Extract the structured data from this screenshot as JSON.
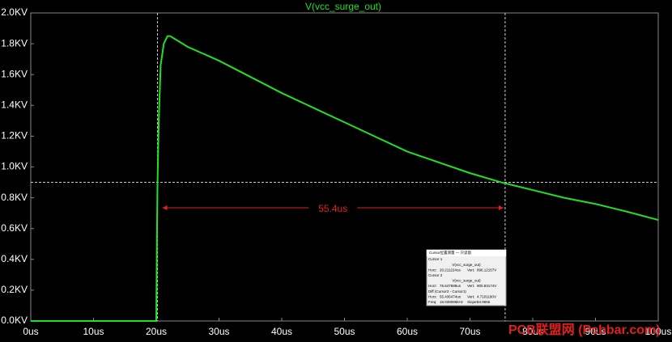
{
  "chart_data": {
    "type": "line",
    "title": "V(vcc_surge_out)",
    "series": [
      {
        "name": "V(vcc_surge_out)",
        "color": "#22e022",
        "x": [
          0,
          10,
          20,
          20.1,
          20.2,
          20.4,
          20.7,
          21.2,
          21.8,
          22.2,
          23,
          25,
          30,
          35,
          40,
          45,
          50,
          55,
          60,
          65,
          70,
          75,
          80,
          85,
          90,
          95,
          100
        ],
        "values": [
          0,
          0,
          0,
          0.5,
          0.9,
          1.3,
          1.66,
          1.8,
          1.85,
          1.85,
          1.83,
          1.78,
          1.69,
          1.585,
          1.48,
          1.385,
          1.29,
          1.195,
          1.1,
          1.03,
          0.96,
          0.9,
          0.85,
          0.8,
          0.76,
          0.71,
          0.656
        ]
      }
    ],
    "xlim": [
      0,
      100
    ],
    "ylim": [
      0,
      2.0
    ],
    "xticks": [
      {
        "value": 0,
        "label": "0us"
      },
      {
        "value": 10,
        "label": "10us"
      },
      {
        "value": 20,
        "label": "20us"
      },
      {
        "value": 30,
        "label": "30us"
      },
      {
        "value": 40,
        "label": "40us"
      },
      {
        "value": 50,
        "label": "50us"
      },
      {
        "value": 60,
        "label": "60us"
      },
      {
        "value": 70,
        "label": "70us"
      },
      {
        "value": 80,
        "label": "80us"
      },
      {
        "value": 90,
        "label": "90us"
      },
      {
        "value": 100,
        "label": "100us"
      }
    ],
    "yticks": [
      {
        "value": 0,
        "label": "0.0KV"
      },
      {
        "value": 0.2,
        "label": "0.2KV"
      },
      {
        "value": 0.4,
        "label": "0.4KV"
      },
      {
        "value": 0.6,
        "label": "0.6KV"
      },
      {
        "value": 0.8,
        "label": "0.8KV"
      },
      {
        "value": 1.0,
        "label": "1.0KV"
      },
      {
        "value": 1.2,
        "label": "1.2KV"
      },
      {
        "value": 1.4,
        "label": "1.4KV"
      },
      {
        "value": 1.6,
        "label": "1.6KV"
      },
      {
        "value": 1.8,
        "label": "1.8KV"
      },
      {
        "value": 2.0,
        "label": "2.0KV"
      }
    ],
    "cursors": {
      "x": [
        20.2,
        75.6
      ],
      "y": 0.9
    },
    "annotation": "55.4us",
    "watermark": "PCB联盟网 (Pcbbar.com)",
    "cursor_panel": {
      "title": "Cursor位置测量 — 只读窗",
      "rows": [
        [
          "Cursor 1"
        ],
        [
          "V(vcc_surge_out)"
        ],
        [
          "Horz:",
          "20.211224us",
          "Vert:",
          "896.12157V"
        ],
        [
          "Cursor 2"
        ],
        [
          "V(vcc_surge_out)"
        ],
        [
          "Horz:",
          "75.647698us",
          "Vert:",
          "900.83174V"
        ],
        [
          "Diff (Cursor2 - Cursor1)"
        ],
        [
          "Horz:",
          "55.436474us",
          "Vert:",
          "4.7101190V"
        ],
        [
          "Freq:",
          "18.039086kHz",
          "Slope:",
          "84.9656"
        ]
      ]
    }
  }
}
